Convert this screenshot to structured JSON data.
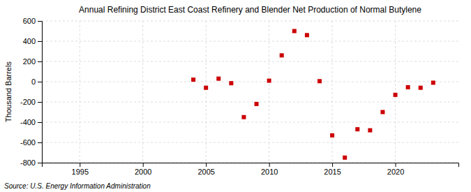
{
  "chart_data": {
    "type": "scatter",
    "title": "Annual Refining District East Coast Refinery and Blender Net Production of Normal Butylene",
    "ylabel": "Thousand Barrels",
    "source": "Source: U.S. Energy Information Administration",
    "x": [
      2004,
      2005,
      2006,
      2007,
      2008,
      2009,
      2010,
      2011,
      2012,
      2013,
      2014,
      2015,
      2016,
      2017,
      2018,
      2019,
      2020,
      2021,
      2022,
      2023
    ],
    "values": [
      20,
      -60,
      30,
      -15,
      -350,
      -220,
      10,
      260,
      500,
      460,
      5,
      -530,
      -750,
      -470,
      -480,
      -300,
      -130,
      -55,
      -60,
      -10
    ],
    "color": "#cc0000",
    "marker": "square",
    "xlim": [
      1992,
      2025
    ],
    "ylim": [
      -800,
      600
    ],
    "xticks": [
      1995,
      2000,
      2005,
      2010,
      2015,
      2020
    ],
    "yticks": [
      -800,
      -600,
      -400,
      -200,
      0,
      200,
      400,
      600
    ],
    "grid": true
  }
}
